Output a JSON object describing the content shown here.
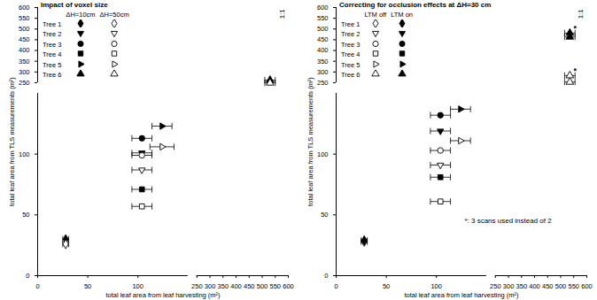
{
  "chart_data": [
    {
      "type": "scatter",
      "title": "Impact of voxel size",
      "x_label": "total leaf area from leaf harvesting (m²)",
      "y_label": "total leaf area from TLS measurements (m²)",
      "xlim": [
        0,
        600
      ],
      "xticks": [
        0,
        50,
        100,
        250,
        300,
        350,
        400,
        450,
        500,
        550,
        600
      ],
      "ylim": [
        0,
        600
      ],
      "yticks": [
        0,
        50,
        100,
        250,
        300,
        350,
        400,
        450,
        500,
        550,
        600
      ],
      "legend": "top-left",
      "grid": false,
      "annotations": [
        {
          "text": "1:1",
          "x": 575,
          "y": 570
        }
      ],
      "series": [
        {
          "name": "Tree 1",
          "group": "ΔH=10cm",
          "marker": "diamond_filled",
          "color": "#000000",
          "x": [
            28
          ],
          "values": [
            30
          ],
          "x_error": [
            3
          ]
        },
        {
          "name": "Tree 1",
          "group": "ΔH=50cm",
          "marker": "diamond_open",
          "color": "#000000",
          "x": [
            28
          ],
          "values": [
            26
          ],
          "x_error": [
            3
          ]
        },
        {
          "name": "Tree 2",
          "group": "ΔH=10cm",
          "marker": "triangledown_filled",
          "color": "#000000",
          "x": [
            104
          ],
          "values": [
            101
          ],
          "x_error": [
            10
          ]
        },
        {
          "name": "Tree 2",
          "group": "ΔH=50cm",
          "marker": "triangledown_open",
          "color": "#000000",
          "x": [
            104
          ],
          "values": [
            87
          ],
          "x_error": [
            10
          ]
        },
        {
          "name": "Tree 3",
          "group": "ΔH=10cm",
          "marker": "circle_filled",
          "color": "#000000",
          "x": [
            104
          ],
          "values": [
            113
          ],
          "x_error": [
            10
          ]
        },
        {
          "name": "Tree 3",
          "group": "ΔH=50cm",
          "marker": "circle_open",
          "color": "#000000",
          "x": [
            104
          ],
          "values": [
            99
          ],
          "x_error": [
            10
          ]
        },
        {
          "name": "Tree 4",
          "group": "ΔH=10cm",
          "marker": "square_filled",
          "color": "#000000",
          "x": [
            104
          ],
          "values": [
            71
          ],
          "x_error": [
            10
          ]
        },
        {
          "name": "Tree 4",
          "group": "ΔH=50cm",
          "marker": "square_open",
          "color": "#000000",
          "x": [
            104
          ],
          "values": [
            57
          ],
          "x_error": [
            10
          ]
        },
        {
          "name": "Tree 5",
          "group": "ΔH=10cm",
          "marker": "triangleright_filled",
          "color": "#000000",
          "x": [
            124
          ],
          "values": [
            123
          ],
          "x_error": [
            10
          ]
        },
        {
          "name": "Tree 5",
          "group": "ΔH=50cm",
          "marker": "triangleright_open",
          "color": "#000000",
          "x": [
            124
          ],
          "values": [
            106
          ],
          "x_error": [
            12
          ]
        },
        {
          "name": "Tree 6",
          "group": "ΔH=10cm",
          "marker": "triangle_filled",
          "color": "#000000",
          "x": [
            530
          ],
          "values": [
            262
          ],
          "x_error": [
            20
          ]
        },
        {
          "name": "Tree 6",
          "group": "ΔH=50cm",
          "marker": "triangle_open",
          "color": "#000000",
          "x": [
            530
          ],
          "values": [
            248
          ],
          "x_error": [
            20
          ]
        }
      ]
    },
    {
      "type": "scatter",
      "title": "Correcting for occlusion effects at ΔH=30 cm",
      "x_label": "total leaf area from leaf harvesting (m²)",
      "y_label": "total leaf area from TLS measurements (m²)",
      "xlim": [
        0,
        600
      ],
      "xticks": [
        0,
        50,
        100,
        250,
        300,
        350,
        400,
        450,
        500,
        550,
        600
      ],
      "ylim": [
        0,
        600
      ],
      "yticks": [
        0,
        50,
        100,
        250,
        300,
        350,
        400,
        450,
        500,
        550,
        600
      ],
      "legend": "top-left",
      "grid": false,
      "annotations": [
        {
          "text": "1:1",
          "x": 575,
          "y": 570
        },
        {
          "text": "*: 3 scans used instead of 2",
          "x": 128,
          "y": 45
        }
      ],
      "series": [
        {
          "name": "Tree 1",
          "group": "LTM off",
          "marker": "diamond_open",
          "color": "#000000",
          "x": [
            28
          ],
          "values": [
            28
          ],
          "x_error": [
            3
          ]
        },
        {
          "name": "Tree 1",
          "group": "LTM on",
          "marker": "diamond_filled",
          "color": "#000000",
          "x": [
            28
          ],
          "values": [
            29
          ],
          "x_error": [
            3
          ]
        },
        {
          "name": "Tree 2",
          "group": "LTM off",
          "marker": "triangledown_open",
          "color": "#000000",
          "x": [
            104
          ],
          "values": [
            91
          ],
          "x_error": [
            10
          ]
        },
        {
          "name": "Tree 2",
          "group": "LTM on",
          "marker": "triangledown_filled",
          "color": "#000000",
          "x": [
            104
          ],
          "values": [
            119
          ],
          "x_error": [
            10
          ]
        },
        {
          "name": "Tree 3",
          "group": "LTM off",
          "marker": "circle_open",
          "color": "#000000",
          "x": [
            104
          ],
          "values": [
            103
          ],
          "x_error": [
            10
          ]
        },
        {
          "name": "Tree 3",
          "group": "LTM on",
          "marker": "circle_filled",
          "color": "#000000",
          "x": [
            104
          ],
          "values": [
            132
          ],
          "x_error": [
            10
          ]
        },
        {
          "name": "Tree 4",
          "group": "LTM off",
          "marker": "square_open",
          "color": "#000000",
          "x": [
            104
          ],
          "values": [
            61
          ],
          "x_error": [
            10
          ]
        },
        {
          "name": "Tree 4",
          "group": "LTM on",
          "marker": "square_filled",
          "color": "#000000",
          "x": [
            104
          ],
          "values": [
            81
          ],
          "x_error": [
            10
          ]
        },
        {
          "name": "Tree 5",
          "group": "LTM off",
          "marker": "triangleright_open",
          "color": "#000000",
          "x": [
            124
          ],
          "values": [
            111
          ],
          "x_error": [
            10
          ]
        },
        {
          "name": "Tree 5",
          "group": "LTM on",
          "marker": "triangleright_filled",
          "color": "#000000",
          "x": [
            124
          ],
          "values": [
            137
          ],
          "x_error": [
            10
          ]
        },
        {
          "name": "Tree 6",
          "group": "LTM off",
          "marker": "triangle_open",
          "color": "#000000",
          "x": [
            535,
            535
          ],
          "values": [
            253,
            283
          ],
          "x_error": [
            20,
            20
          ],
          "point_labels": [
            null,
            "*"
          ]
        },
        {
          "name": "Tree 6",
          "group": "LTM on",
          "marker": "triangle_filled",
          "color": "#000000",
          "x": [
            535,
            535
          ],
          "values": [
            463,
            481
          ],
          "x_error": [
            20,
            20
          ],
          "point_labels": [
            null,
            "*"
          ]
        }
      ]
    }
  ]
}
